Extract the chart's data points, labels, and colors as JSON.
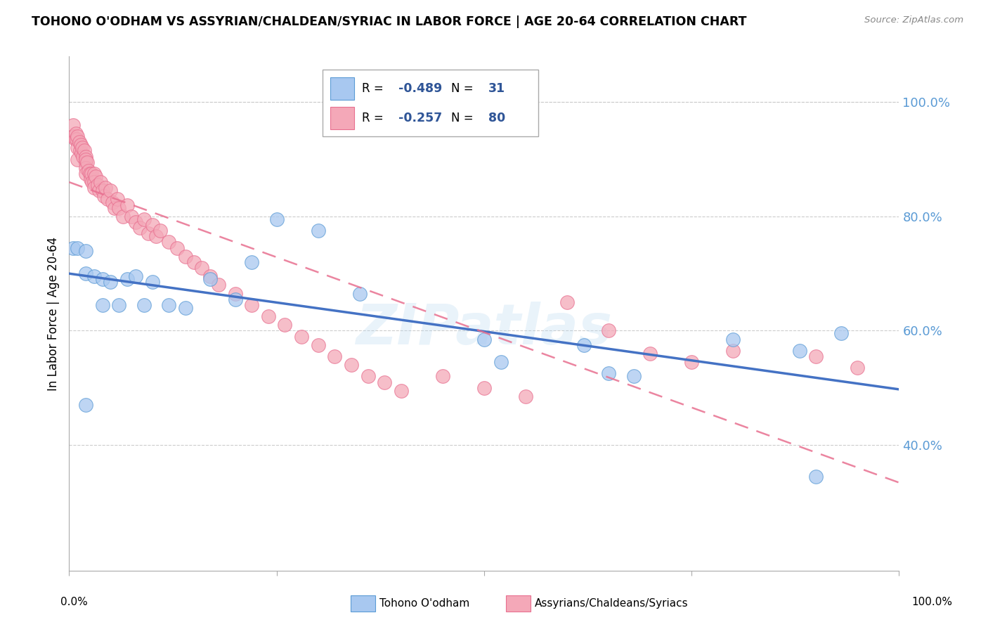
{
  "title": "TOHONO O'ODHAM VS ASSYRIAN/CHALDEAN/SYRIAC IN LABOR FORCE | AGE 20-64 CORRELATION CHART",
  "source": "Source: ZipAtlas.com",
  "ylabel": "In Labor Force | Age 20-64",
  "y_tick_labels": [
    "100.0%",
    "80.0%",
    "60.0%",
    "40.0%"
  ],
  "y_tick_values": [
    1.0,
    0.8,
    0.6,
    0.4
  ],
  "xlim": [
    0.0,
    1.0
  ],
  "ylim": [
    0.18,
    1.08
  ],
  "r_blue": "-0.489",
  "n_blue": "31",
  "r_pink": "-0.257",
  "n_pink": "80",
  "legend_blue": "Tohono O'odham",
  "legend_pink": "Assyrians/Chaldeans/Syriacs",
  "blue_color": "#A8C8F0",
  "pink_color": "#F4A8B8",
  "blue_edge_color": "#5B9BD5",
  "pink_edge_color": "#E87090",
  "blue_line_color": "#4472C4",
  "pink_line_color": "#E87090",
  "r_val_color": "#2F5597",
  "n_val_color": "#2F5597",
  "watermark": "ZIPatlas",
  "blue_scatter_x": [
    0.005,
    0.01,
    0.02,
    0.02,
    0.03,
    0.04,
    0.04,
    0.05,
    0.06,
    0.07,
    0.08,
    0.09,
    0.1,
    0.12,
    0.14,
    0.17,
    0.2,
    0.22,
    0.25,
    0.3,
    0.35,
    0.5,
    0.52,
    0.62,
    0.65,
    0.68,
    0.8,
    0.88,
    0.9,
    0.93,
    0.02
  ],
  "blue_scatter_y": [
    0.745,
    0.745,
    0.74,
    0.7,
    0.695,
    0.69,
    0.645,
    0.685,
    0.645,
    0.69,
    0.695,
    0.645,
    0.685,
    0.645,
    0.64,
    0.69,
    0.655,
    0.72,
    0.795,
    0.775,
    0.665,
    0.585,
    0.545,
    0.575,
    0.525,
    0.52,
    0.585,
    0.565,
    0.345,
    0.595,
    0.47
  ],
  "pink_scatter_x": [
    0.005,
    0.005,
    0.007,
    0.008,
    0.009,
    0.01,
    0.01,
    0.01,
    0.012,
    0.013,
    0.014,
    0.015,
    0.016,
    0.017,
    0.018,
    0.02,
    0.02,
    0.02,
    0.02,
    0.02,
    0.022,
    0.023,
    0.025,
    0.026,
    0.027,
    0.028,
    0.03,
    0.03,
    0.03,
    0.032,
    0.034,
    0.036,
    0.038,
    0.04,
    0.042,
    0.044,
    0.046,
    0.05,
    0.052,
    0.055,
    0.058,
    0.06,
    0.065,
    0.07,
    0.075,
    0.08,
    0.085,
    0.09,
    0.095,
    0.1,
    0.105,
    0.11,
    0.12,
    0.13,
    0.14,
    0.15,
    0.16,
    0.17,
    0.18,
    0.2,
    0.22,
    0.24,
    0.26,
    0.28,
    0.3,
    0.32,
    0.34,
    0.36,
    0.38,
    0.4,
    0.45,
    0.5,
    0.55,
    0.6,
    0.65,
    0.7,
    0.75,
    0.8,
    0.9,
    0.95
  ],
  "pink_scatter_y": [
    0.96,
    0.94,
    0.935,
    0.945,
    0.935,
    0.94,
    0.92,
    0.9,
    0.93,
    0.915,
    0.925,
    0.91,
    0.92,
    0.905,
    0.915,
    0.905,
    0.895,
    0.9,
    0.885,
    0.875,
    0.895,
    0.88,
    0.875,
    0.865,
    0.875,
    0.86,
    0.875,
    0.86,
    0.85,
    0.87,
    0.855,
    0.845,
    0.86,
    0.845,
    0.835,
    0.85,
    0.83,
    0.845,
    0.825,
    0.815,
    0.83,
    0.815,
    0.8,
    0.82,
    0.8,
    0.79,
    0.78,
    0.795,
    0.77,
    0.785,
    0.765,
    0.775,
    0.755,
    0.745,
    0.73,
    0.72,
    0.71,
    0.695,
    0.68,
    0.665,
    0.645,
    0.625,
    0.61,
    0.59,
    0.575,
    0.555,
    0.54,
    0.52,
    0.51,
    0.495,
    0.52,
    0.5,
    0.485,
    0.65,
    0.6,
    0.56,
    0.545,
    0.565,
    0.555,
    0.535
  ]
}
